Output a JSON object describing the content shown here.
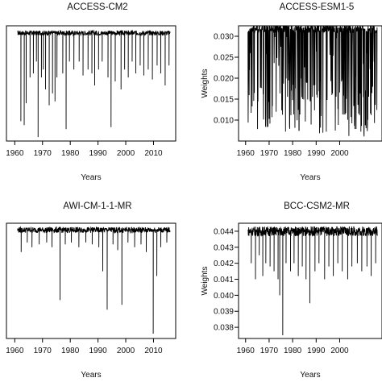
{
  "chart_data": [
    {
      "type": "line",
      "title": "ACCESS-CM2",
      "xlabel": "Years",
      "ylabel": "",
      "xlim": [
        1957,
        2018
      ],
      "ylim": [
        0.005,
        0.034
      ],
      "x_ticks": [
        "1960",
        "1970",
        "1980",
        "1990",
        "2000",
        "2010"
      ],
      "y_ticks": [],
      "series": [
        {
          "x_start": 1961,
          "x_end": 2016,
          "baseline": 0.0322,
          "jitter": 0.0006,
          "dips": [
            [
              1962.2,
              0.01
            ],
            [
              1963.4,
              0.009
            ],
            [
              1964.1,
              0.0145
            ],
            [
              1965.5,
              0.021
            ],
            [
              1966.7,
              0.022
            ],
            [
              1967.8,
              0.025
            ],
            [
              1968.4,
              0.006
            ],
            [
              1969.6,
              0.021
            ],
            [
              1970.3,
              0.023
            ],
            [
              1971.1,
              0.018
            ],
            [
              1972.4,
              0.014
            ],
            [
              1973.6,
              0.017
            ],
            [
              1974.5,
              0.015
            ],
            [
              1975.2,
              0.021
            ],
            [
              1977.3,
              0.022
            ],
            [
              1978.5,
              0.008
            ],
            [
              1979.7,
              0.025
            ],
            [
              1981.3,
              0.023
            ],
            [
              1983.2,
              0.025
            ],
            [
              1984.6,
              0.0215
            ],
            [
              1986.4,
              0.023
            ],
            [
              1987.8,
              0.022
            ],
            [
              1988.8,
              0.019
            ],
            [
              1990.2,
              0.023
            ],
            [
              1991.5,
              0.025
            ],
            [
              1993.6,
              0.021
            ],
            [
              1994.7,
              0.0085
            ],
            [
              1996.2,
              0.02
            ],
            [
              1998.3,
              0.018
            ],
            [
              1999.6,
              0.023
            ],
            [
              2000.9,
              0.021
            ],
            [
              2002.3,
              0.025
            ],
            [
              2003.6,
              0.022
            ],
            [
              2005.2,
              0.024
            ],
            [
              2006.5,
              0.0215
            ],
            [
              2008.1,
              0.023
            ],
            [
              2009.6,
              0.0205
            ],
            [
              2011.3,
              0.024
            ],
            [
              2012.6,
              0.022
            ],
            [
              2014.2,
              0.019
            ],
            [
              2015.6,
              0.024
            ]
          ]
        }
      ]
    },
    {
      "type": "line",
      "title": "ACCESS-ESM1-5",
      "xlabel": "Years",
      "ylabel": "Weights",
      "xlim": [
        1957,
        2018
      ],
      "ylim": [
        0.005,
        0.0325
      ],
      "x_ticks": [
        "1960",
        "1970",
        "1980",
        "1990",
        "2000"
      ],
      "y_ticks": [
        "0.010",
        "0.015",
        "0.020",
        "0.025",
        "0.030"
      ],
      "series": [
        {
          "x_start": 1961,
          "x_end": 2016,
          "baseline": 0.0318,
          "jitter": 0.001,
          "dense_min": 0.006,
          "dense_max": 0.0318
        }
      ]
    },
    {
      "type": "line",
      "title": "AWI-CM-1-1-MR",
      "xlabel": "Years",
      "ylabel": "",
      "xlim": [
        1957,
        2018
      ],
      "ylim": [
        0.033,
        0.045
      ],
      "x_ticks": [
        "1960",
        "1970",
        "1980",
        "1990",
        "2000",
        "2010"
      ],
      "y_ticks": [],
      "series": [
        {
          "x_start": 1961,
          "x_end": 2016,
          "baseline": 0.0443,
          "jitter": 0.0003,
          "dips": [
            [
              1962.3,
              0.042
            ],
            [
              1964.5,
              0.043
            ],
            [
              1966.2,
              0.0425
            ],
            [
              1968.8,
              0.0428
            ],
            [
              1971.5,
              0.043
            ],
            [
              1973.4,
              0.0425
            ],
            [
              1976.3,
              0.037
            ],
            [
              1978.2,
              0.0428
            ],
            [
              1980.4,
              0.043
            ],
            [
              1983.1,
              0.0425
            ],
            [
              1985.6,
              0.043
            ],
            [
              1987.9,
              0.0428
            ],
            [
              1990.3,
              0.0425
            ],
            [
              1991.7,
              0.04
            ],
            [
              1993.3,
              0.036
            ],
            [
              1995.4,
              0.0428
            ],
            [
              1997.1,
              0.0422
            ],
            [
              1998.6,
              0.0365
            ],
            [
              2000.8,
              0.043
            ],
            [
              2003.2,
              0.0425
            ],
            [
              2005.5,
              0.0428
            ],
            [
              2007.4,
              0.042
            ],
            [
              2009.9,
              0.0335
            ],
            [
              2011.2,
              0.0395
            ],
            [
              2012.6,
              0.0425
            ],
            [
              2014.8,
              0.043
            ]
          ]
        }
      ]
    },
    {
      "type": "line",
      "title": "BCC-CSM2-MR",
      "xlabel": "Years",
      "ylabel": "Weights",
      "xlim": [
        1957,
        2018
      ],
      "ylim": [
        0.0373,
        0.0445
      ],
      "x_ticks": [
        "1960",
        "1970",
        "1980",
        "1990",
        "2000"
      ],
      "y_ticks": [
        "0.038",
        "0.039",
        "0.040",
        "0.041",
        "0.042",
        "0.043",
        "0.044"
      ],
      "series": [
        {
          "x_start": 1961,
          "x_end": 2016,
          "baseline": 0.044,
          "jitter": 0.0003,
          "dips": [
            [
              1962.4,
              0.042
            ],
            [
              1964.2,
              0.041
            ],
            [
              1965.8,
              0.0425
            ],
            [
              1967.3,
              0.0412
            ],
            [
              1968.6,
              0.042
            ],
            [
              1970.4,
              0.0418
            ],
            [
              1972.1,
              0.0415
            ],
            [
              1973.8,
              0.041
            ],
            [
              1974.5,
              0.04
            ],
            [
              1975.8,
              0.0375
            ],
            [
              1977.2,
              0.042
            ],
            [
              1979.1,
              0.0415
            ],
            [
              1980.6,
              0.042
            ],
            [
              1982.4,
              0.0412
            ],
            [
              1984.1,
              0.0418
            ],
            [
              1985.7,
              0.041
            ],
            [
              1987.3,
              0.0395
            ],
            [
              1989.5,
              0.0415
            ],
            [
              1991.2,
              0.042
            ],
            [
              1993.6,
              0.041
            ],
            [
              1995.4,
              0.0418
            ],
            [
              1997.3,
              0.0412
            ],
            [
              1999.2,
              0.042
            ],
            [
              2001.1,
              0.0415
            ],
            [
              2003.4,
              0.041
            ],
            [
              2005.2,
              0.0418
            ],
            [
              2007.5,
              0.042
            ],
            [
              2009.4,
              0.0415
            ],
            [
              2011.6,
              0.0418
            ],
            [
              2013.4,
              0.0412
            ],
            [
              2015.3,
              0.042
            ]
          ]
        }
      ]
    }
  ]
}
